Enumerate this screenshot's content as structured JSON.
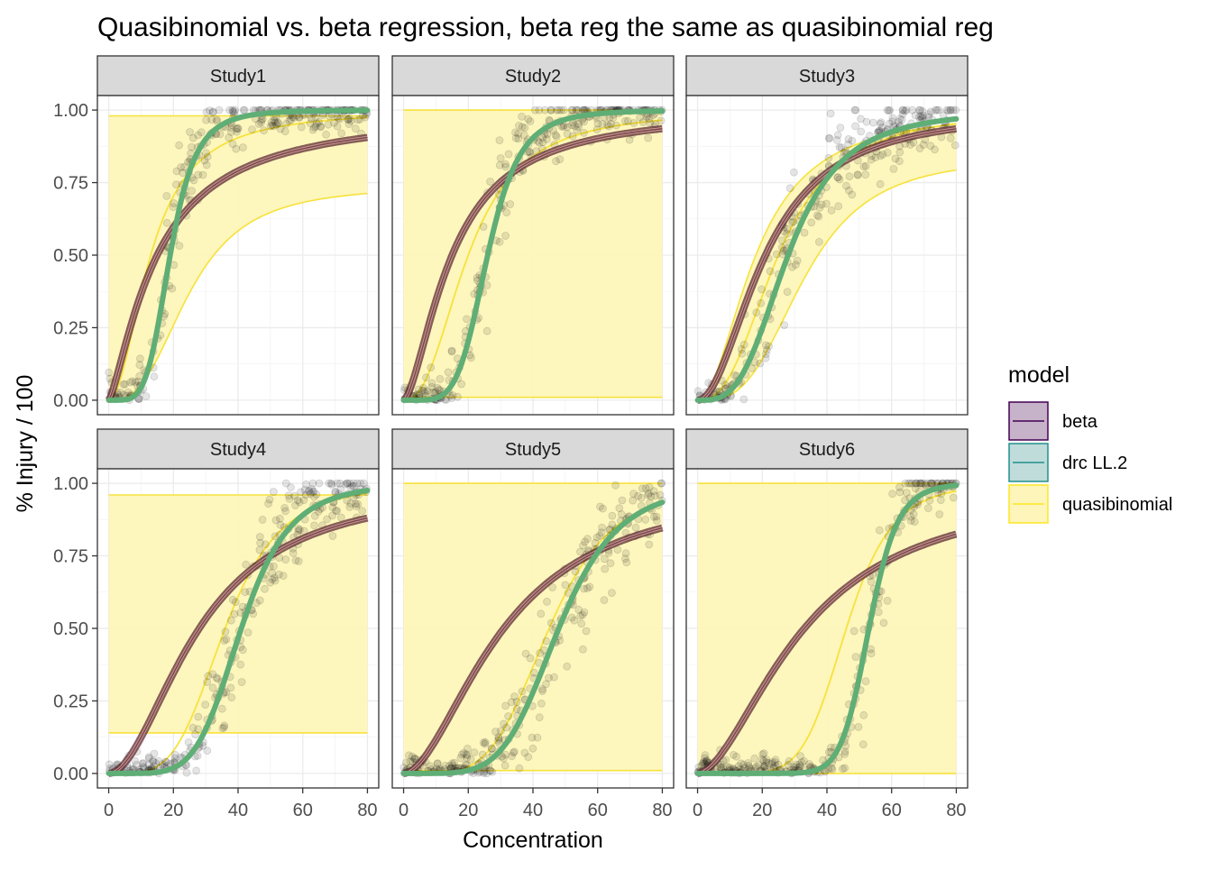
{
  "chart_data": {
    "type": "line",
    "title": "Quasibinomial vs. beta regression, beta reg the same as quasibinomial reg",
    "xlabel": "Concentration",
    "ylabel": "% Injury / 100",
    "xlim": [
      -3.5,
      83.5
    ],
    "ylim": [
      -0.05,
      1.05
    ],
    "x_ticks": [
      0,
      20,
      40,
      60,
      80
    ],
    "y_ticks": [
      0.0,
      0.25,
      0.5,
      0.75,
      1.0
    ],
    "x_tick_labels": [
      "0",
      "20",
      "40",
      "60",
      "80"
    ],
    "y_tick_labels": [
      "0.00",
      "0.25",
      "0.50",
      "0.75",
      "1.00"
    ],
    "grid": true,
    "legend": {
      "title": "model",
      "position": "right",
      "entries": [
        {
          "label": "beta",
          "color": "#440154"
        },
        {
          "label": "drc LL.2",
          "color": "#21908C"
        },
        {
          "label": "quasibinomial",
          "color": "#FDE725"
        }
      ]
    },
    "colors": {
      "beta_line": "#7a4048",
      "drc_line": "#5fae76",
      "quasi_fill": "#fdf5b9",
      "quasi_line": "#f7e23b",
      "points": "#000000",
      "strip_bg": "#d9d9d9"
    },
    "x_range": [
      0,
      80
    ],
    "panels": [
      {
        "strip": "Study1",
        "beta": {
          "e": 15,
          "b": 1.35
        },
        "drc": {
          "e": 19,
          "b": 4.8
        },
        "quasi": {
          "mid": {
            "e": 13,
            "b": 2.0
          },
          "upper": "fixed:0.98",
          "lower": {
            "e": 25,
            "b": 2.8,
            "top": 0.74
          }
        }
      },
      {
        "strip": "Study2",
        "beta": {
          "e": 15,
          "b": 1.6
        },
        "drc": {
          "e": 26,
          "b": 5.2
        },
        "quasi": {
          "mid": {
            "e": 20,
            "b": 2.4
          },
          "upper": "fixed:1.0",
          "lower": "fixed:0.01"
        }
      },
      {
        "strip": "Study3",
        "beta": {
          "e": 21,
          "b": 2.0
        },
        "drc": {
          "e": 28,
          "b": 3.3
        },
        "quasi": {
          "mid": {
            "e": 25,
            "b": 2.6
          },
          "upper": {
            "e": 18,
            "b": 2.0,
            "top": 1.0
          },
          "lower": {
            "e": 33,
            "b": 3.2,
            "top": 0.84
          }
        }
      },
      {
        "strip": "Study4",
        "beta": {
          "e": 28,
          "b": 1.9
        },
        "drc": {
          "e": 41,
          "b": 5.5
        },
        "quasi": {
          "mid": {
            "e": 36,
            "b": 4.2
          },
          "upper": "fixed:0.96",
          "lower": "fixed:0.14"
        }
      },
      {
        "strip": "Study5",
        "beta": {
          "e": 31,
          "b": 1.8
        },
        "drc": {
          "e": 48,
          "b": 5.2
        },
        "quasi": {
          "mid": {
            "e": 45,
            "b": 4.6
          },
          "upper": "fixed:1.0",
          "lower": "fixed:0.01"
        }
      },
      {
        "strip": "Study6",
        "beta": {
          "e": 33,
          "b": 1.75
        },
        "drc": {
          "e": 53,
          "b": 12
        },
        "quasi": {
          "mid": {
            "e": 46,
            "b": 6.5
          },
          "upper": "fixed:1.0",
          "lower": "fixed:0.0"
        }
      }
    ]
  }
}
